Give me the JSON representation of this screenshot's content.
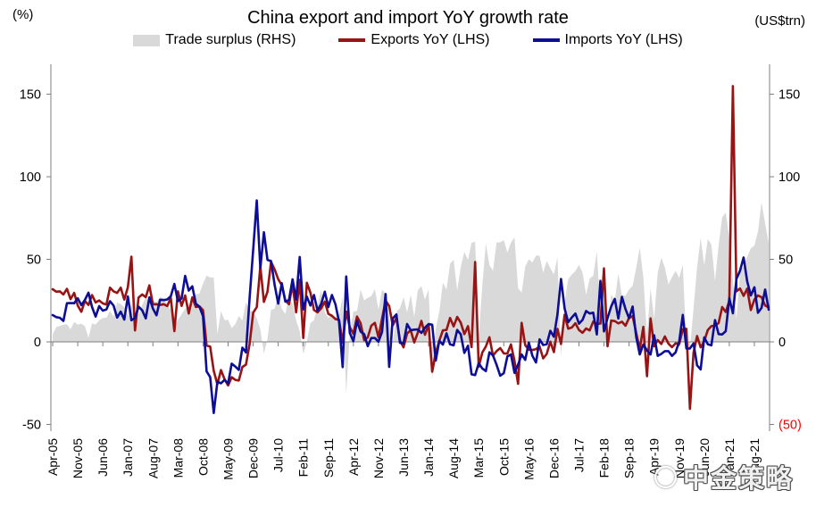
{
  "header": {
    "title": "China export and import YoY growth rate",
    "left_unit": "(%)",
    "right_unit": "(US$trn)"
  },
  "legend": [
    {
      "label": "Trade surplus (RHS)",
      "type": "area",
      "color": "#D9D9D9"
    },
    {
      "label": "Exports YoY (LHS)",
      "type": "line",
      "color": "#981414"
    },
    {
      "label": "Imports YoY (LHS)",
      "type": "line",
      "color": "#0D0D96"
    }
  ],
  "watermark": {
    "text": "中金策略"
  },
  "chart_data": {
    "type": "line",
    "title": "China export and import YoY growth rate",
    "frequency": "monthly",
    "start_month": "2005-04",
    "end_month": "2021-12",
    "grid": false,
    "legend_position": "top",
    "x_tick_every": 7,
    "x_tick_labels": [
      "Apr-05",
      "Nov-05",
      "Jun-06",
      "Jan-07",
      "Aug-07",
      "Mar-08",
      "Oct-08",
      "May-09",
      "Dec-09",
      "Jul-10",
      "Feb-11",
      "Sep-11",
      "Apr-12",
      "Nov-12",
      "Jun-13",
      "Jan-14",
      "Aug-14",
      "Mar-15",
      "Oct-15",
      "May-16",
      "Dec-16",
      "Jul-17",
      "Feb-18",
      "Sep-18",
      "Apr-19",
      "Nov-19",
      "Jun-20",
      "Jan-21",
      "Aug-21"
    ],
    "left_axis": {
      "label": "(%)",
      "ticks": [
        150,
        100,
        50,
        0,
        -50
      ],
      "range": [
        -54,
        168
      ]
    },
    "right_axis": {
      "label": "(US$trn)",
      "tick_labels": [
        "150",
        "100",
        "50",
        "0",
        "(50)"
      ],
      "tick_values": [
        150,
        100,
        50,
        0,
        -50
      ],
      "negative_color": "#FF0000"
    },
    "axis_color": "#7F7F7F",
    "series": [
      {
        "id": "trade_surplus",
        "name": "Trade surplus (RHS)",
        "type": "area",
        "axis": "right",
        "color": "#D9D9D9",
        "values": [
          4.6,
          9.0,
          9.7,
          10.4,
          10.6,
          7.6,
          12.0,
          10.5,
          11.0,
          9.5,
          2.5,
          11.2,
          10.5,
          13.0,
          14.5,
          14.6,
          18.8,
          15.3,
          23.8,
          22.9,
          21.0,
          15.9,
          23.8,
          6.9,
          16.7,
          22.5,
          26.9,
          24.4,
          25.0,
          23.9,
          27.1,
          26.3,
          22.7,
          19.5,
          8.6,
          13.4,
          16.7,
          20.2,
          21.4,
          25.3,
          28.7,
          29.3,
          35.2,
          40.1,
          39.0,
          39.1,
          4.8,
          18.6,
          13.1,
          13.4,
          8.3,
          10.6,
          15.7,
          12.9,
          24.0,
          19.1,
          18.4,
          14.2,
          7.6,
          -7.2,
          1.7,
          19.5,
          20.0,
          28.7,
          20.0,
          16.9,
          27.1,
          22.9,
          13.1,
          6.5,
          -7.3,
          0.1,
          11.4,
          13.1,
          22.3,
          31.5,
          17.8,
          14.5,
          17.0,
          14.5,
          16.5,
          27.3,
          -31.5,
          5.4,
          18.4,
          18.7,
          31.7,
          25.1,
          26.7,
          27.7,
          32.0,
          19.6,
          31.6,
          29.2,
          15.3,
          -0.9,
          18.2,
          20.4,
          27.1,
          17.8,
          28.5,
          15.2,
          31.1,
          33.8,
          25.6,
          31.9,
          -23.0,
          7.7,
          18.5,
          35.9,
          31.6,
          47.3,
          49.8,
          31.0,
          45.4,
          54.5,
          49.6,
          60.0,
          60.6,
          3.1,
          34.1,
          59.5,
          46.5,
          43.0,
          60.2,
          60.3,
          61.6,
          54.1,
          60.1,
          63.3,
          32.6,
          29.9,
          45.6,
          50.0,
          48.1,
          52.3,
          52.1,
          42.0,
          49.1,
          44.6,
          40.8,
          51.3,
          -9.2,
          23.9,
          38.0,
          40.8,
          42.8,
          46.7,
          42.0,
          28.5,
          38.2,
          40.2,
          54.7,
          20.3,
          33.7,
          -5.0,
          28.8,
          24.9,
          41.5,
          28.1,
          27.9,
          31.7,
          34.0,
          44.7,
          57.1,
          39.2,
          4.1,
          32.6,
          13.8,
          41.7,
          51.0,
          45.1,
          34.8,
          39.2,
          43.0,
          38.7,
          46.8,
          -3.9,
          -3.9,
          19.9,
          45.3,
          62.9,
          46.4,
          62.3,
          58.9,
          37.0,
          58.4,
          75.4,
          78.2,
          63.2,
          37.9,
          13.8,
          42.9,
          45.5,
          51.5,
          56.6,
          58.3,
          66.8,
          84.5,
          71.7,
          60.0
        ]
      },
      {
        "id": "exports",
        "name": "Exports YoY (LHS)",
        "type": "line",
        "axis": "left",
        "color": "#981414",
        "values": [
          31.9,
          30.4,
          30.6,
          28.7,
          32.1,
          25.9,
          29.7,
          22.0,
          18.2,
          24.8,
          22.3,
          28.3,
          23.9,
          25.1,
          23.3,
          22.6,
          32.8,
          30.6,
          29.6,
          32.8,
          25.6,
          33.0,
          51.6,
          6.9,
          26.8,
          28.7,
          27.1,
          34.2,
          22.7,
          22.8,
          22.3,
          22.8,
          21.7,
          26.6,
          6.5,
          30.6,
          21.8,
          28.1,
          17.2,
          26.9,
          21.1,
          21.5,
          19.2,
          -2.2,
          -2.8,
          -17.5,
          -25.7,
          -17.1,
          -22.6,
          -26.4,
          -21.4,
          -23.0,
          -23.4,
          -15.2,
          -13.8,
          -1.2,
          17.7,
          21.0,
          45.7,
          24.2,
          30.4,
          48.4,
          43.9,
          38.0,
          34.3,
          25.1,
          22.8,
          34.9,
          17.9,
          37.6,
          2.3,
          35.8,
          29.8,
          19.3,
          17.9,
          20.3,
          24.4,
          17.0,
          15.8,
          13.8,
          13.3,
          -0.5,
          18.3,
          8.8,
          4.9,
          15.3,
          11.3,
          1.0,
          2.7,
          9.8,
          11.5,
          2.8,
          14.0,
          25.0,
          21.7,
          10.0,
          14.6,
          0.9,
          -3.3,
          5.1,
          7.1,
          -0.4,
          5.6,
          12.7,
          4.3,
          10.5,
          -18.1,
          -6.6,
          0.8,
          7.0,
          7.2,
          14.5,
          9.4,
          15.1,
          11.6,
          4.7,
          9.5,
          -3.2,
          48.3,
          -15.0,
          -6.5,
          -2.8,
          2.8,
          -8.4,
          -5.6,
          -3.8,
          -7.0,
          -7.1,
          -1.5,
          -11.5,
          -25.4,
          11.5,
          -2.0,
          -4.7,
          -4.9,
          -4.4,
          -2.8,
          -10.0,
          -7.3,
          0.1,
          -6.2,
          7.9,
          -1.3,
          16.4,
          8.0,
          8.7,
          11.3,
          7.2,
          5.5,
          8.1,
          6.9,
          12.3,
          10.9,
          11.1,
          44.5,
          -2.7,
          12.9,
          12.6,
          11.2,
          12.2,
          9.8,
          14.5,
          15.6,
          5.4,
          -4.4,
          9.1,
          -20.8,
          14.2,
          -2.7,
          1.1,
          -1.3,
          3.3,
          -1.0,
          -3.2,
          -0.9,
          -1.3,
          7.6,
          7.9,
          -40.6,
          -6.6,
          3.5,
          -3.3,
          0.5,
          7.2,
          9.5,
          9.9,
          11.4,
          21.1,
          18.1,
          24.8,
          154.9,
          30.6,
          32.3,
          27.9,
          32.2,
          19.3,
          25.6,
          28.1,
          27.1,
          22.0,
          20.9
        ]
      },
      {
        "id": "imports",
        "name": "Imports YoY (LHS)",
        "type": "line",
        "axis": "left",
        "color": "#0D0D96",
        "values": [
          16.2,
          15.0,
          14.6,
          12.7,
          23.4,
          23.5,
          23.4,
          26.4,
          22.2,
          25.4,
          29.8,
          21.1,
          15.3,
          21.7,
          18.9,
          19.7,
          24.6,
          22.0,
          14.7,
          18.3,
          13.5,
          27.5,
          13.1,
          14.5,
          21.3,
          19.1,
          14.2,
          26.9,
          20.1,
          16.1,
          25.5,
          25.3,
          25.7,
          27.6,
          35.1,
          24.6,
          26.3,
          40.0,
          31.0,
          33.7,
          23.1,
          21.3,
          15.6,
          -17.9,
          -21.3,
          -43.1,
          -24.1,
          -25.1,
          -23.0,
          -25.2,
          -13.2,
          -14.9,
          -17.0,
          -3.5,
          -6.4,
          26.7,
          55.9,
          85.6,
          44.7,
          66.4,
          49.7,
          48.9,
          34.6,
          23.2,
          35.5,
          24.4,
          25.4,
          37.9,
          25.6,
          51.4,
          19.7,
          27.4,
          22.0,
          28.4,
          19.0,
          23.0,
          30.4,
          21.1,
          28.4,
          22.6,
          12.1,
          -15.3,
          39.6,
          5.4,
          0.4,
          12.7,
          6.2,
          4.7,
          -2.6,
          2.3,
          2.3,
          0.1,
          6.0,
          29.0,
          -15.2,
          14.2,
          16.6,
          -0.6,
          -0.9,
          10.8,
          7.1,
          7.4,
          7.5,
          5.4,
          8.6,
          10.8,
          10.4,
          -11.3,
          0.7,
          -1.7,
          5.2,
          -1.5,
          -2.1,
          7.2,
          4.6,
          -6.7,
          -2.3,
          -19.7,
          -20.1,
          -12.9,
          -16.1,
          -17.7,
          -6.3,
          -8.2,
          -13.9,
          -20.5,
          -19.0,
          -8.8,
          -7.6,
          -18.8,
          -13.8,
          -7.6,
          -10.9,
          -0.4,
          -8.4,
          -12.5,
          1.5,
          -1.9,
          -1.4,
          6.7,
          3.1,
          16.7,
          38.1,
          20.3,
          11.9,
          14.8,
          17.2,
          11.0,
          13.3,
          18.7,
          17.2,
          17.7,
          4.5,
          36.9,
          6.3,
          14.4,
          21.5,
          26.0,
          14.1,
          27.3,
          19.9,
          14.3,
          21.4,
          3.0,
          -7.6,
          -1.5,
          -5.2,
          -7.6,
          4.0,
          -8.5,
          -7.3,
          -5.6,
          -5.6,
          -8.5,
          -6.4,
          0.3,
          16.3,
          -4.0,
          -4.0,
          -0.9,
          -14.2,
          -16.7,
          2.7,
          -1.4,
          -2.1,
          13.2,
          4.7,
          4.5,
          6.5,
          26.4,
          17.3,
          38.1,
          43.1,
          51.1,
          36.7,
          28.1,
          33.1,
          17.6,
          20.6,
          31.7,
          19.5
        ]
      }
    ]
  }
}
